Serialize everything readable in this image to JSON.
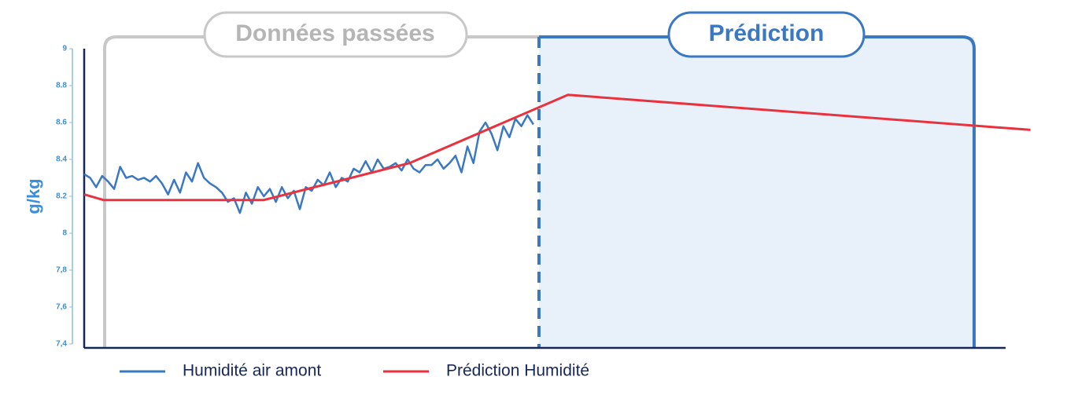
{
  "chart_data": {
    "type": "line",
    "ylabel": "g/kg",
    "annotations": [
      "Données passées",
      "Prédiction"
    ],
    "ylim": [
      7.4,
      9
    ],
    "yticks": [
      {
        "value": 7.4,
        "label": "7,4"
      },
      {
        "value": 7.6,
        "label": "7,6"
      },
      {
        "value": 7.8,
        "label": "7,8"
      },
      8,
      {
        "value": 8.2,
        "label": "8.2"
      },
      {
        "value": 8.4,
        "label": "8.4"
      },
      {
        "value": 8.6,
        "label": "8.6"
      },
      {
        "value": 8.8,
        "label": "8.8"
      },
      9
    ],
    "xlim": [
      0,
      100
    ],
    "series": [
      {
        "name": "Humidité air amont",
        "color": "#3a78c3",
        "x": [
          0,
          0.65,
          1.3,
          1.95,
          2.6,
          3.25,
          3.9,
          4.55,
          5.2,
          5.85,
          6.5,
          7.15,
          7.8,
          8.45,
          9.1,
          9.75,
          10.4,
          11.05,
          11.7,
          12.35,
          13,
          13.65,
          14.3,
          14.95,
          15.6,
          16.25,
          16.9,
          17.55,
          18.2,
          18.85,
          19.5,
          20.15,
          20.8,
          21.45,
          22.1,
          22.75,
          23.4,
          24.05,
          24.7,
          25.35,
          26,
          26.65,
          27.3,
          27.95,
          28.6,
          29.25,
          29.9,
          30.55,
          31.2,
          31.85,
          32.5,
          33.15,
          33.8,
          34.45,
          35.1,
          35.75,
          36.4,
          37.05,
          37.7,
          38.35,
          39,
          39.65,
          40.3,
          40.95,
          41.6,
          42.25,
          42.9,
          43.55,
          44.2,
          44.85,
          45.5,
          46.15,
          46.8,
          47.45,
          48.1,
          48.75
        ],
        "values": [
          8.32,
          8.3,
          8.25,
          8.31,
          8.28,
          8.24,
          8.36,
          8.3,
          8.31,
          8.29,
          8.3,
          8.28,
          8.31,
          8.27,
          8.21,
          8.29,
          8.22,
          8.33,
          8.28,
          8.38,
          8.3,
          8.27,
          8.25,
          8.22,
          8.17,
          8.19,
          8.11,
          8.22,
          8.16,
          8.25,
          8.2,
          8.24,
          8.17,
          8.25,
          8.19,
          8.23,
          8.13,
          8.25,
          8.23,
          8.29,
          8.26,
          8.33,
          8.25,
          8.3,
          8.28,
          8.35,
          8.33,
          8.39,
          8.33,
          8.4,
          8.35,
          8.36,
          8.38,
          8.34,
          8.4,
          8.35,
          8.33,
          8.37,
          8.37,
          8.4,
          8.35,
          8.38,
          8.42,
          8.33,
          8.47,
          8.38,
          8.55,
          8.6,
          8.54,
          8.45,
          8.58,
          8.52,
          8.62,
          8.58,
          8.64,
          8.59
        ]
      },
      {
        "name": "Prédiction Humidité",
        "color": "#e8333f",
        "x": [
          0,
          2.1,
          19.5,
          35.3,
          52.5,
          102.7
        ],
        "values": [
          8.21,
          8.18,
          8.18,
          8.38,
          8.75,
          8.56
        ]
      }
    ]
  }
}
